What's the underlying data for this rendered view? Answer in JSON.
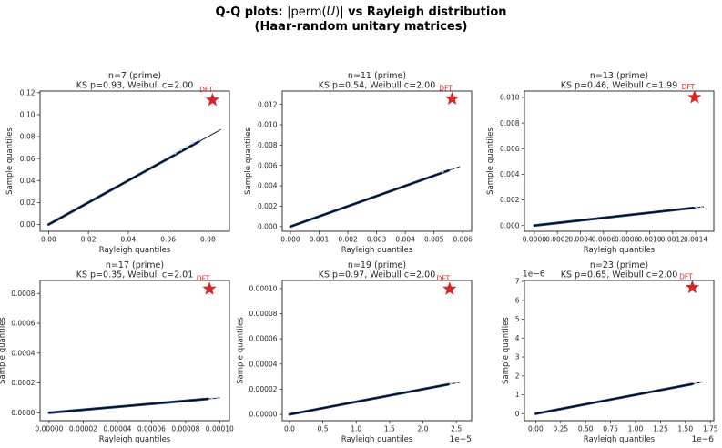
{
  "figure": {
    "title": {
      "bold_prefix": "Q-Q plots: ",
      "math_open": "|perm(",
      "math_u": "U",
      "math_close": ")|",
      "bold_suffix": " vs Rayleigh distribution",
      "line2": "(Haar-random unitary matrices)"
    },
    "colors": {
      "qq_line": "#14386e",
      "ref_line": "#000000",
      "tail_dots": "#a9cbe8",
      "star": "#d62728",
      "dft_label": "#d62728",
      "spine": "#333333",
      "text": "#262626"
    }
  },
  "chart_data": {
    "type": "scatter",
    "title": "Q-Q plots: |perm(U)| vs Rayleigh distribution (Haar-random unitary matrices)",
    "layout_hint": "2 rows x 3 columns, grid off, no legend, red star annotation labeled DFT in each panel",
    "subplots": [
      {
        "title": "n=7 (prime)",
        "subtitle": "KS p=0.93, Weibull c=2.00",
        "xlabel": "Rayleigh quantiles",
        "ylabel": "Sample quantiles",
        "xlim": [
          -0.0043,
          0.0908
        ],
        "ylim": [
          -0.0062,
          0.1215
        ],
        "xticks": {
          "values": [
            0,
            0.02,
            0.04,
            0.06,
            0.08
          ],
          "labels": [
            "0.00",
            "0.02",
            "0.04",
            "0.06",
            "0.08"
          ]
        },
        "yticks": {
          "values": [
            0,
            0.02,
            0.04,
            0.06,
            0.08,
            0.1,
            0.12
          ],
          "labels": [
            "0.00",
            "0.02",
            "0.04",
            "0.06",
            "0.08",
            "0.10",
            "0.12"
          ]
        },
        "x_offset_label": "",
        "y_offset_label": "",
        "qq_line_end": 0.0755,
        "ref_line_end": 0.0865,
        "tail_points": [
          [
            0.0635,
            0.0648
          ],
          [
            0.0665,
            0.068
          ],
          [
            0.0695,
            0.0712
          ],
          [
            0.0725,
            0.0742
          ],
          [
            0.0755,
            0.0768
          ]
        ],
        "star": {
          "x": 0.0823,
          "y": 0.1133,
          "label": "DFT"
        }
      },
      {
        "title": "n=11 (prime)",
        "subtitle": "KS p=0.54, Weibull c=2.00",
        "xlabel": "Rayleigh quantiles",
        "ylabel": "Sample quantiles",
        "xlim": [
          -0.000285,
          0.00631
        ],
        "ylim": [
          -0.00046,
          0.01331
        ],
        "xticks": {
          "values": [
            0,
            0.001,
            0.002,
            0.003,
            0.004,
            0.005,
            0.006
          ],
          "labels": [
            "0.000",
            "0.001",
            "0.002",
            "0.003",
            "0.004",
            "0.005",
            "0.006"
          ]
        },
        "yticks": {
          "values": [
            0,
            0.002,
            0.004,
            0.006,
            0.008,
            0.01,
            0.012
          ],
          "labels": [
            "0.000",
            "0.002",
            "0.004",
            "0.006",
            "0.008",
            "0.010",
            "0.012"
          ]
        },
        "x_offset_label": "",
        "y_offset_label": "",
        "qq_line_end": 0.0055,
        "ref_line_end": 0.0059,
        "tail_points": [
          [
            0.0053,
            0.00538
          ],
          [
            0.0056,
            0.0057
          ]
        ],
        "star": {
          "x": 0.00563,
          "y": 0.01255,
          "label": "DFT"
        }
      },
      {
        "title": "n=13 (prime)",
        "subtitle": "KS p=0.46, Weibull c=1.99",
        "xlabel": "Rayleigh quantiles",
        "ylabel": "Sample quantiles",
        "xlim": [
          -8.6e-05,
          0.001557
        ],
        "ylim": [
          -0.00045,
          0.0105
        ],
        "xticks": {
          "values": [
            0,
            0.0002,
            0.0004,
            0.0006,
            0.0008,
            0.001,
            0.0012,
            0.0014
          ],
          "labels": [
            "0.0000",
            "0.0002",
            "0.0004",
            "0.0006",
            "0.0008",
            "0.0010",
            "0.0012",
            "0.0014"
          ]
        },
        "yticks": {
          "values": [
            0,
            0.002,
            0.004,
            0.006,
            0.008,
            0.01
          ],
          "labels": [
            "0.000",
            "0.002",
            "0.004",
            "0.006",
            "0.008",
            "0.010"
          ]
        },
        "x_offset_label": "",
        "y_offset_label": "",
        "qq_line_end": 0.00138,
        "ref_line_end": 0.00147,
        "tail_points": [
          [
            0.00141,
            0.00143
          ],
          [
            0.00145,
            0.00147
          ]
        ],
        "star": {
          "x": 0.00139,
          "y": 0.01,
          "label": "DFT"
        }
      },
      {
        "title": "n=17 (prime)",
        "subtitle": "KS p=0.35, Weibull c=2.01",
        "xlabel": "Rayleigh quantiles",
        "ylabel": "Sample quantiles",
        "xlim": [
          -5.3e-06,
          0.0001057
        ],
        "ylim": [
          -5.3e-05,
          0.000887
        ],
        "xticks": {
          "values": [
            0,
            2e-05,
            4e-05,
            6e-05,
            8e-05,
            0.0001
          ],
          "labels": [
            "0.00000",
            "0.00002",
            "0.00004",
            "0.00006",
            "0.00008",
            "0.00010"
          ]
        },
        "yticks": {
          "values": [
            0,
            0.0002,
            0.0004,
            0.0006,
            0.0008
          ],
          "labels": [
            "0.0000",
            "0.0002",
            "0.0004",
            "0.0006",
            "0.0008"
          ]
        },
        "x_offset_label": "",
        "y_offset_label": "",
        "qq_line_end": 9.3e-05,
        "ref_line_end": 0.0001,
        "tail_points": [
          [
            9.55e-05,
            9.65e-05
          ],
          [
            9.85e-05,
            9.95e-05
          ]
        ],
        "star": {
          "x": 9.4e-05,
          "y": 0.00083,
          "label": "DFT"
        }
      },
      {
        "title": "n=19 (prime)",
        "subtitle": "KS p=0.97, Weibull c=2.00",
        "xlabel": "Rayleigh quantiles",
        "ylabel": "Sample quantiles",
        "xlim": [
          -1.09e-06,
          2.73e-05
        ],
        "ylim": [
          -5e-06,
          0.0001064
        ],
        "xticks": {
          "values": [
            0,
            5e-06,
            1e-05,
            1.5e-05,
            2e-05,
            2.5e-05
          ],
          "labels": [
            "0.0",
            "0.5",
            "1.0",
            "1.5",
            "2.0",
            "2.5"
          ]
        },
        "yticks": {
          "values": [
            0,
            2e-05,
            4e-05,
            6e-05,
            8e-05,
            0.0001
          ],
          "labels": [
            "0.00000",
            "0.00002",
            "0.00004",
            "0.00006",
            "0.00008",
            "0.00010"
          ]
        },
        "x_offset_label": "1e−5",
        "y_offset_label": "",
        "qq_line_end": 2.38e-05,
        "ref_line_end": 2.55e-05,
        "tail_points": [
          [
            2.42e-05,
            2.46e-05
          ],
          [
            2.5e-05,
            2.54e-05
          ]
        ],
        "star": {
          "x": 2.4e-05,
          "y": 9.96e-05,
          "label": "DFT"
        }
      },
      {
        "title": "n=23 (prime)",
        "subtitle": "KS p=0.65, Weibull c=2.00",
        "xlabel": "Rayleigh quantiles",
        "ylabel": "Sample quantiles",
        "xlim": [
          -1.13e-07,
          1.785e-06
        ],
        "ylim": [
          -3.7e-07,
          7.05e-06
        ],
        "xticks": {
          "values": [
            0,
            2.5e-07,
            5e-07,
            7.5e-07,
            1e-06,
            1.25e-06,
            1.5e-06,
            1.75e-06
          ],
          "labels": [
            "0.00",
            "0.25",
            "0.50",
            "0.75",
            "1.00",
            "1.25",
            "1.50",
            "1.75"
          ]
        },
        "yticks": {
          "values": [
            0,
            1e-06,
            2e-06,
            3e-06,
            4e-06,
            5e-06,
            6e-06,
            7e-06
          ],
          "labels": [
            "0",
            "1",
            "2",
            "3",
            "4",
            "5",
            "6",
            "7"
          ]
        },
        "x_offset_label": "1e−6",
        "y_offset_label": "1e−6",
        "qq_line_end": 1.57e-06,
        "ref_line_end": 1.68e-06,
        "tail_points": [
          [
            1.6e-06,
            1.62e-06
          ],
          [
            1.66e-06,
            1.68e-06
          ]
        ],
        "star": {
          "x": 1.57e-06,
          "y": 6.68e-06,
          "label": "DFT"
        }
      }
    ]
  }
}
